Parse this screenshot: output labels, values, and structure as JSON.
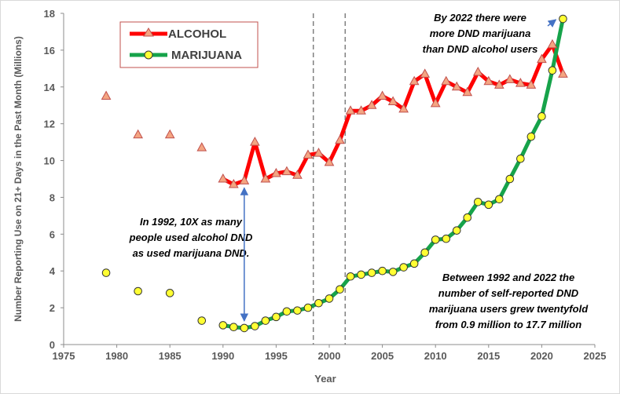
{
  "chart_data": {
    "type": "line",
    "title": "",
    "xlabel": "Year",
    "ylabel": "Number Reporting Use on 21+ Days in the Past Month (Millions)",
    "xlim": [
      1975,
      2025
    ],
    "ylim": [
      0,
      18
    ],
    "xticks": [
      1975,
      1980,
      1985,
      1990,
      1995,
      2000,
      2005,
      2010,
      2015,
      2020,
      2025
    ],
    "yticks": [
      0,
      2,
      4,
      6,
      8,
      10,
      12,
      14,
      16,
      18
    ],
    "legend": {
      "position": "top-left",
      "entries": [
        "ALCOHOL",
        "MARIJUANA"
      ]
    },
    "vlines": [
      1998.5,
      2001.5
    ],
    "series": [
      {
        "name": "ALCOHOL",
        "line_color": "#ff0000",
        "marker": "triangle",
        "marker_color": "#f4a582",
        "early_points": [
          [
            1979,
            13.5
          ],
          [
            1982,
            11.4
          ],
          [
            1985,
            11.4
          ],
          [
            1988,
            10.7
          ]
        ],
        "points": [
          [
            1990,
            9.0
          ],
          [
            1991,
            8.7
          ],
          [
            1992,
            8.9
          ],
          [
            1993,
            11.0
          ],
          [
            1994,
            9.0
          ],
          [
            1995,
            9.3
          ],
          [
            1996,
            9.4
          ],
          [
            1997,
            9.2
          ],
          [
            1998,
            10.3
          ],
          [
            1999,
            10.4
          ],
          [
            2000,
            9.9
          ],
          [
            2001,
            11.1
          ],
          [
            2002,
            12.7
          ],
          [
            2003,
            12.7
          ],
          [
            2004,
            13.0
          ],
          [
            2005,
            13.5
          ],
          [
            2006,
            13.2
          ],
          [
            2007,
            12.8
          ],
          [
            2008,
            14.3
          ],
          [
            2009,
            14.7
          ],
          [
            2010,
            13.1
          ],
          [
            2011,
            14.3
          ],
          [
            2012,
            14.0
          ],
          [
            2013,
            13.7
          ],
          [
            2014,
            14.8
          ],
          [
            2015,
            14.3
          ],
          [
            2016,
            14.1
          ],
          [
            2017,
            14.4
          ],
          [
            2018,
            14.2
          ],
          [
            2019,
            14.1
          ],
          [
            2020,
            15.5
          ],
          [
            2021,
            16.3
          ],
          [
            2022,
            14.7
          ]
        ]
      },
      {
        "name": "MARIJUANA",
        "line_color": "#16a34a",
        "marker": "circle",
        "marker_color": "#ffff33",
        "early_points": [
          [
            1979,
            3.9
          ],
          [
            1982,
            2.9
          ],
          [
            1985,
            2.8
          ],
          [
            1988,
            1.3
          ]
        ],
        "points": [
          [
            1990,
            1.05
          ],
          [
            1991,
            0.95
          ],
          [
            1992,
            0.9
          ],
          [
            1993,
            1.0
          ],
          [
            1994,
            1.3
          ],
          [
            1995,
            1.5
          ],
          [
            1996,
            1.8
          ],
          [
            1997,
            1.85
          ],
          [
            1998,
            2.0
          ],
          [
            1999,
            2.25
          ],
          [
            2000,
            2.5
          ],
          [
            2001,
            3.0
          ],
          [
            2002,
            3.7
          ],
          [
            2003,
            3.8
          ],
          [
            2004,
            3.9
          ],
          [
            2005,
            4.0
          ],
          [
            2006,
            3.95
          ],
          [
            2007,
            4.2
          ],
          [
            2008,
            4.4
          ],
          [
            2009,
            5.0
          ],
          [
            2010,
            5.7
          ],
          [
            2011,
            5.75
          ],
          [
            2012,
            6.2
          ],
          [
            2013,
            6.9
          ],
          [
            2014,
            7.75
          ],
          [
            2015,
            7.6
          ],
          [
            2016,
            7.9
          ],
          [
            2017,
            9.0
          ],
          [
            2018,
            10.1
          ],
          [
            2019,
            11.3
          ],
          [
            2020,
            12.4
          ],
          [
            2021,
            14.9
          ],
          [
            2022,
            17.7
          ]
        ]
      }
    ],
    "annotations": [
      {
        "id": "a1992",
        "lines": [
          "In 1992, 10X as many",
          "people used alcohol DND",
          "as used marijuana DND."
        ]
      },
      {
        "id": "a2022",
        "lines": [
          "By 2022  there were",
          "more DND marijuana",
          "than DND alcohol users"
        ]
      },
      {
        "id": "agrowth",
        "lines": [
          "Between 1992 and 2022 the",
          "number of self-reported DND",
          "marijuana users grew twentyfold",
          "from 0.9 million to 17.7 million"
        ]
      }
    ]
  }
}
